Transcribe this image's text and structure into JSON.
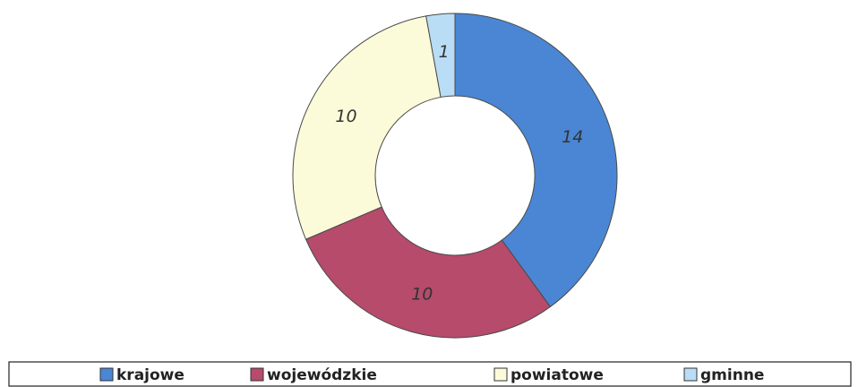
{
  "chart_data": {
    "type": "donut",
    "categories": [
      "krajowe",
      "wojewódzkie",
      "powiatowe",
      "gminne"
    ],
    "values": [
      14,
      10,
      10,
      1
    ],
    "colors": [
      "#4a86d4",
      "#b64b6c",
      "#fcfbd9",
      "#b9ddf5"
    ],
    "legend": "bottom"
  }
}
